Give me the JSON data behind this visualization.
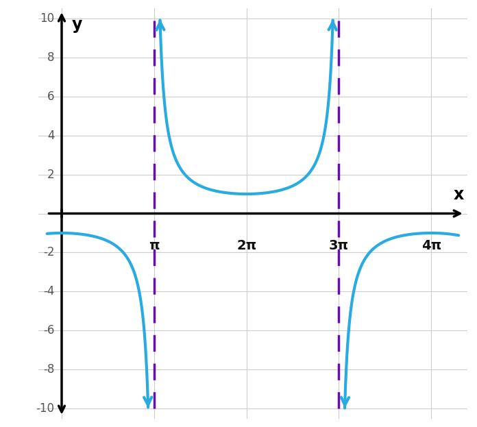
{
  "xlim": [
    -0.8,
    13.8
  ],
  "ylim": [
    -10.5,
    10.5
  ],
  "plot_ylim": [
    -10,
    10
  ],
  "xticks": [
    3.14159265,
    6.2831853,
    9.42477796,
    12.56637061
  ],
  "xtick_labels": [
    "π",
    "2π",
    "3π",
    "4π"
  ],
  "yticks": [
    -10,
    -8,
    -6,
    -4,
    -2,
    2,
    4,
    6,
    8,
    10
  ],
  "ytick_labels": [
    "-10",
    "-8",
    "-6",
    "-4",
    "-2",
    "2",
    "4",
    "6",
    "8",
    "10"
  ],
  "asymptotes": [
    3.14159265,
    9.42477796
  ],
  "curve_color": "#29ABE2",
  "asymptote_color": "#6A0DAD",
  "background_color": "#ffffff",
  "grid_color": "#cccccc",
  "axis_color": "#000000",
  "curve_linewidth": 3.0,
  "asymptote_linewidth": 2.5,
  "xlabel": "x",
  "ylabel": "y"
}
